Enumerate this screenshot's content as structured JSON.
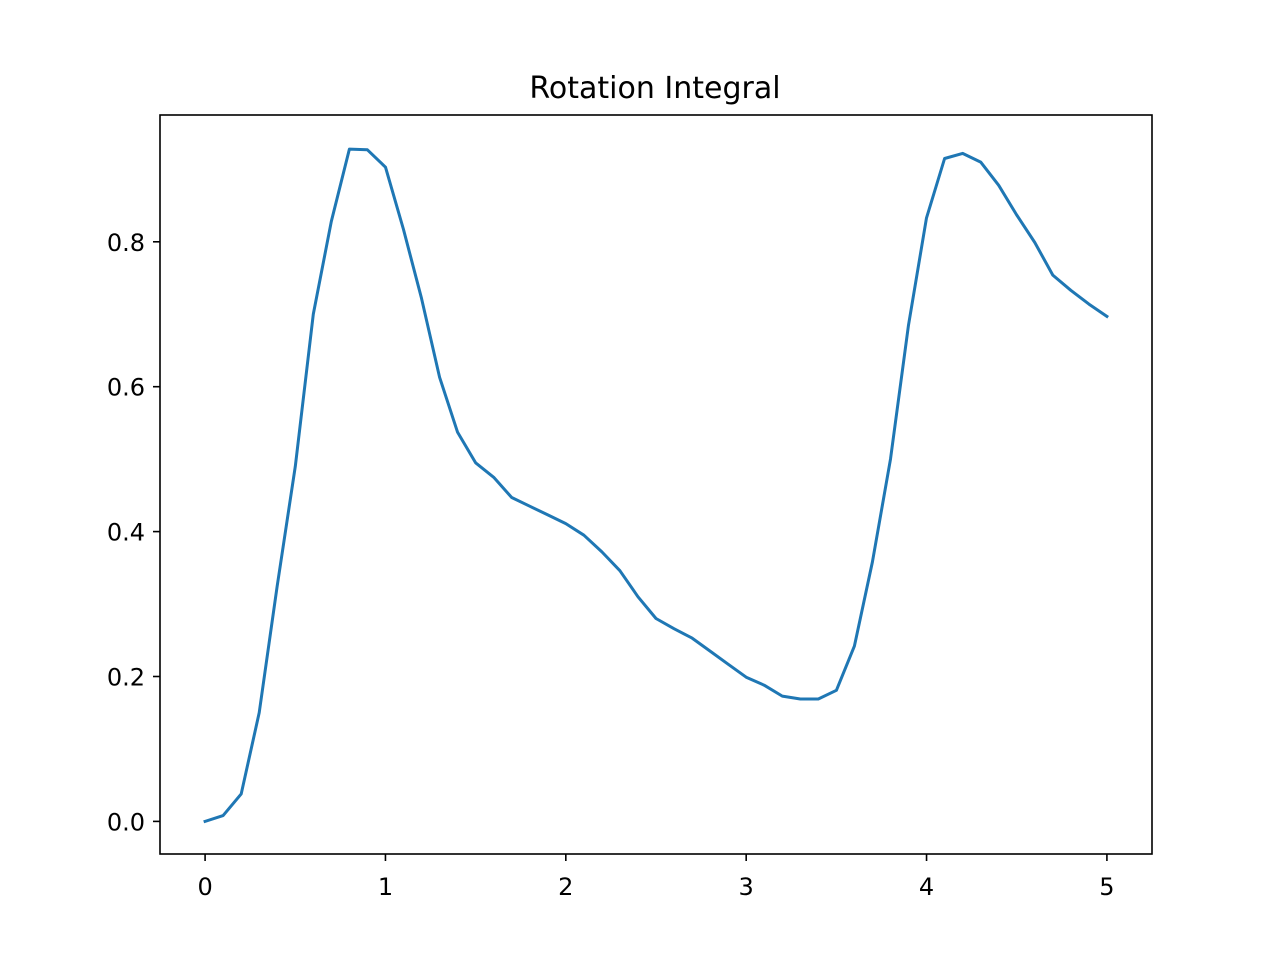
{
  "chart_data": {
    "type": "line",
    "title": "Rotation Integral",
    "xlabel": "",
    "ylabel": "",
    "xlim": [
      -0.25,
      5.25
    ],
    "ylim": [
      -0.045,
      0.975
    ],
    "xticks": [
      0,
      1,
      2,
      3,
      4,
      5
    ],
    "xtick_labels": [
      "0",
      "1",
      "2",
      "3",
      "4",
      "5"
    ],
    "yticks": [
      0.0,
      0.2,
      0.4,
      0.6,
      0.8
    ],
    "ytick_labels": [
      "0.0",
      "0.2",
      "0.4",
      "0.6",
      "0.8"
    ],
    "grid": false,
    "legend": "none",
    "series": [
      {
        "color": "#1f77b4",
        "x": [
          0.0,
          0.1,
          0.2,
          0.3,
          0.4,
          0.5,
          0.6,
          0.7,
          0.8,
          0.9,
          1.0,
          1.1,
          1.2,
          1.3,
          1.4,
          1.5,
          1.6,
          1.7,
          1.8,
          1.9,
          2.0,
          2.1,
          2.2,
          2.3,
          2.4,
          2.5,
          2.6,
          2.7,
          2.8,
          2.9,
          3.0,
          3.1,
          3.2,
          3.3,
          3.4,
          3.5,
          3.6,
          3.7,
          3.8,
          3.9,
          4.0,
          4.1,
          4.2,
          4.3,
          4.4,
          4.5,
          4.6,
          4.7,
          4.8,
          4.9,
          5.0
        ],
        "y": [
          0.0,
          0.008,
          0.038,
          0.15,
          0.325,
          0.49,
          0.7,
          0.828,
          0.928,
          0.927,
          0.903,
          0.817,
          0.722,
          0.613,
          0.537,
          0.495,
          0.475,
          0.447,
          0.435,
          0.423,
          0.411,
          0.395,
          0.372,
          0.346,
          0.31,
          0.28,
          0.266,
          0.253,
          0.235,
          0.217,
          0.199,
          0.188,
          0.173,
          0.169,
          0.169,
          0.181,
          0.242,
          0.358,
          0.5,
          0.685,
          0.833,
          0.915,
          0.922,
          0.91,
          0.878,
          0.837,
          0.799,
          0.754,
          0.733,
          0.714,
          0.697
        ]
      }
    ]
  }
}
